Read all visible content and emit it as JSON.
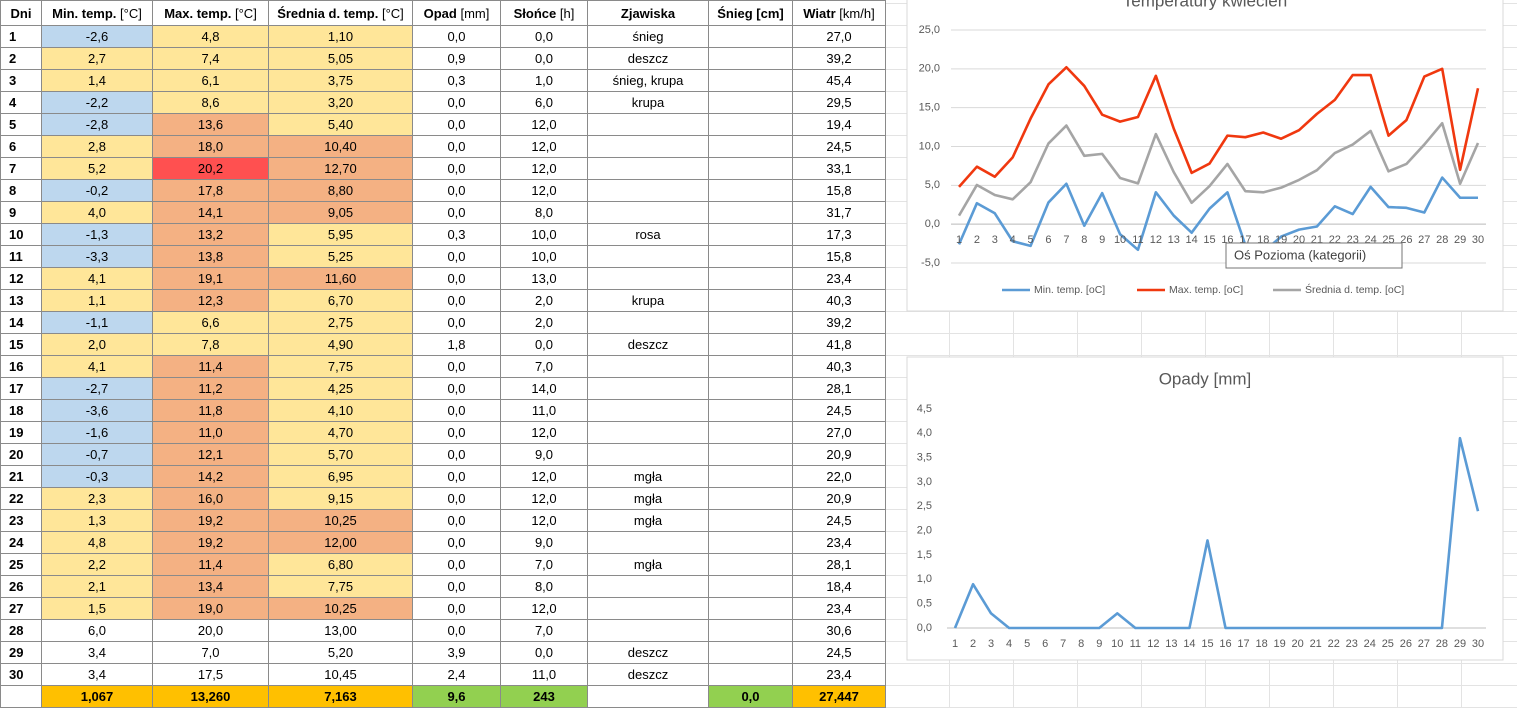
{
  "table": {
    "headers": [
      {
        "name": "Dni"
      },
      {
        "name": "Min. temp.",
        "unit": "[°C]"
      },
      {
        "name": "Max. temp.",
        "unit": "[°C]"
      },
      {
        "name": "Średnia d. temp.",
        "unit": "[°C]"
      },
      {
        "name": "Opad",
        "unit": "[mm]"
      },
      {
        "name": "Słońce",
        "unit": "[h]"
      },
      {
        "name": "Zjawiska"
      },
      {
        "name": "Śnieg [cm]"
      },
      {
        "name": "Wiatr",
        "unit": "[km/h]"
      }
    ],
    "rows": [
      [
        "1",
        "-2,6",
        "4,8",
        "1,10",
        "0,0",
        "0,0",
        "śnieg",
        null,
        "27,0"
      ],
      [
        "2",
        "2,7",
        "7,4",
        "5,05",
        "0,9",
        "0,0",
        "deszcz",
        null,
        "39,2"
      ],
      [
        "3",
        "1,4",
        "6,1",
        "3,75",
        "0,3",
        "1,0",
        "śnieg, krupa",
        null,
        "45,4"
      ],
      [
        "4",
        "-2,2",
        "8,6",
        "3,20",
        "0,0",
        "6,0",
        "krupa",
        null,
        "29,5"
      ],
      [
        "5",
        "-2,8",
        "13,6",
        "5,40",
        "0,0",
        "12,0",
        null,
        null,
        "19,4"
      ],
      [
        "6",
        "2,8",
        "18,0",
        "10,40",
        "0,0",
        "12,0",
        null,
        null,
        "24,5"
      ],
      [
        "7",
        "5,2",
        "20,2",
        "12,70",
        "0,0",
        "12,0",
        null,
        null,
        "33,1"
      ],
      [
        "8",
        "-0,2",
        "17,8",
        "8,80",
        "0,0",
        "12,0",
        null,
        null,
        "15,8"
      ],
      [
        "9",
        "4,0",
        "14,1",
        "9,05",
        "0,0",
        "8,0",
        null,
        null,
        "31,7"
      ],
      [
        "10",
        "-1,3",
        "13,2",
        "5,95",
        "0,3",
        "10,0",
        "rosa",
        null,
        "17,3"
      ],
      [
        "11",
        "-3,3",
        "13,8",
        "5,25",
        "0,0",
        "10,0",
        null,
        null,
        "15,8"
      ],
      [
        "12",
        "4,1",
        "19,1",
        "11,60",
        "0,0",
        "13,0",
        null,
        null,
        "23,4"
      ],
      [
        "13",
        "1,1",
        "12,3",
        "6,70",
        "0,0",
        "2,0",
        "krupa",
        null,
        "40,3"
      ],
      [
        "14",
        "-1,1",
        "6,6",
        "2,75",
        "0,0",
        "2,0",
        null,
        null,
        "39,2"
      ],
      [
        "15",
        "2,0",
        "7,8",
        "4,90",
        "1,8",
        "0,0",
        "deszcz",
        null,
        "41,8"
      ],
      [
        "16",
        "4,1",
        "11,4",
        "7,75",
        "0,0",
        "7,0",
        null,
        null,
        "40,3"
      ],
      [
        "17",
        "-2,7",
        "11,2",
        "4,25",
        "0,0",
        "14,0",
        null,
        null,
        "28,1"
      ],
      [
        "18",
        "-3,6",
        "11,8",
        "4,10",
        "0,0",
        "11,0",
        null,
        null,
        "24,5"
      ],
      [
        "19",
        "-1,6",
        "11,0",
        "4,70",
        "0,0",
        "12,0",
        null,
        null,
        "27,0"
      ],
      [
        "20",
        "-0,7",
        "12,1",
        "5,70",
        "0,0",
        "9,0",
        null,
        null,
        "20,9"
      ],
      [
        "21",
        "-0,3",
        "14,2",
        "6,95",
        "0,0",
        "12,0",
        "mgła",
        null,
        "22,0"
      ],
      [
        "22",
        "2,3",
        "16,0",
        "9,15",
        "0,0",
        "12,0",
        "mgła",
        null,
        "20,9"
      ],
      [
        "23",
        "1,3",
        "19,2",
        "10,25",
        "0,0",
        "12,0",
        "mgła",
        null,
        "24,5"
      ],
      [
        "24",
        "4,8",
        "19,2",
        "12,00",
        "0,0",
        "9,0",
        null,
        null,
        "23,4"
      ],
      [
        "25",
        "2,2",
        "11,4",
        "6,80",
        "0,0",
        "7,0",
        "mgła",
        null,
        "28,1"
      ],
      [
        "26",
        "2,1",
        "13,4",
        "7,75",
        "0,0",
        "8,0",
        null,
        null,
        "18,4"
      ],
      [
        "27",
        "1,5",
        "19,0",
        "10,25",
        "0,0",
        "12,0",
        null,
        null,
        "23,4"
      ],
      [
        "28",
        "6,0",
        "20,0",
        "13,00",
        "0,0",
        "7,0",
        null,
        null,
        "30,6"
      ],
      [
        "29",
        "3,4",
        "7,0",
        "5,20",
        "3,9",
        "0,0",
        "deszcz",
        null,
        "24,5"
      ],
      [
        "30",
        "3,4",
        "17,5",
        "10,45",
        "2,4",
        "11,0",
        "deszcz",
        null,
        "23,4"
      ]
    ],
    "fills": [
      [
        "#BDD7EE",
        "#FFE699",
        "#FFE699"
      ],
      [
        "#FFE699",
        "#FFE699",
        "#FFE699"
      ],
      [
        "#FFE699",
        "#FFE699",
        "#FFE699"
      ],
      [
        "#BDD7EE",
        "#FFE699",
        "#FFE699"
      ],
      [
        "#BDD7EE",
        "#F4B183",
        "#FFE699"
      ],
      [
        "#FFE699",
        "#F4B183",
        "#F4B183"
      ],
      [
        "#FFE699",
        "#FF5050",
        "#F4B183"
      ],
      [
        "#BDD7EE",
        "#F4B183",
        "#F4B183"
      ],
      [
        "#FFE699",
        "#F4B183",
        "#F4B183"
      ],
      [
        "#BDD7EE",
        "#F4B183",
        "#FFE699"
      ],
      [
        "#BDD7EE",
        "#F4B183",
        "#FFE699"
      ],
      [
        "#FFE699",
        "#F4B183",
        "#F4B183"
      ],
      [
        "#FFE699",
        "#F4B183",
        "#FFE699"
      ],
      [
        "#BDD7EE",
        "#FFE699",
        "#FFE699"
      ],
      [
        "#FFE699",
        "#FFE699",
        "#FFE699"
      ],
      [
        "#FFE699",
        "#F4B183",
        "#FFE699"
      ],
      [
        "#BDD7EE",
        "#F4B183",
        "#FFE699"
      ],
      [
        "#BDD7EE",
        "#F4B183",
        "#FFE699"
      ],
      [
        "#BDD7EE",
        "#F4B183",
        "#FFE699"
      ],
      [
        "#BDD7EE",
        "#F4B183",
        "#FFE699"
      ],
      [
        "#BDD7EE",
        "#F4B183",
        "#FFE699"
      ],
      [
        "#FFE699",
        "#F4B183",
        "#FFE699"
      ],
      [
        "#FFE699",
        "#F4B183",
        "#F4B183"
      ],
      [
        "#FFE699",
        "#F4B183",
        "#F4B183"
      ],
      [
        "#FFE699",
        "#F4B183",
        "#FFE699"
      ],
      [
        "#FFE699",
        "#F4B183",
        "#FFE699"
      ],
      [
        "#FFE699",
        "#F4B183",
        "#F4B183"
      ],
      [
        null,
        null,
        null
      ],
      [
        null,
        null,
        null
      ],
      [
        null,
        null,
        null
      ]
    ],
    "totals": [
      null,
      "1,067",
      "13,260",
      "7,163",
      "9,6",
      "243",
      null,
      "0,0",
      "27,447"
    ],
    "totals_fills": [
      null,
      "#FFC000",
      "#FFC000",
      "#FFC000",
      "#92D050",
      "#92D050",
      null,
      "#92D050",
      "#FFC000"
    ]
  },
  "chart_data": [
    {
      "type": "line",
      "title": "Temperatury kwiecień",
      "tooltip": "Oś Pozioma (kategorii)",
      "grid": true,
      "legend": "bottom",
      "categories": [
        "1",
        "2",
        "3",
        "4",
        "5",
        "6",
        "7",
        "8",
        "9",
        "10",
        "11",
        "12",
        "13",
        "14",
        "15",
        "16",
        "17",
        "18",
        "19",
        "20",
        "21",
        "22",
        "23",
        "24",
        "25",
        "26",
        "27",
        "28",
        "29",
        "30"
      ],
      "ylim": [
        -5,
        25
      ],
      "yticks": [
        {
          "value": -5,
          "label": "-5,0"
        },
        {
          "value": 0,
          "label": "0,0"
        },
        {
          "value": 5,
          "label": "5,0"
        },
        {
          "value": 10,
          "label": "10,0"
        },
        {
          "value": 15,
          "label": "15,0"
        },
        {
          "value": 20,
          "label": "20,0"
        },
        {
          "value": 25,
          "label": "25,0"
        }
      ],
      "series": [
        {
          "name": "Min. temp. [oC]",
          "color": "#5B9BD5",
          "values": [
            -2.6,
            2.7,
            1.4,
            -2.2,
            -2.8,
            2.8,
            5.2,
            -0.2,
            4.0,
            -1.3,
            -3.3,
            4.1,
            1.1,
            -1.1,
            2.0,
            4.1,
            -2.7,
            -3.6,
            -1.6,
            -0.7,
            -0.3,
            2.3,
            1.3,
            4.8,
            2.2,
            2.1,
            1.5,
            6.0,
            3.4,
            3.4
          ]
        },
        {
          "name": "Max. temp. [oC]",
          "color": "#F0380F",
          "values": [
            4.8,
            7.4,
            6.1,
            8.6,
            13.6,
            18.0,
            20.2,
            17.8,
            14.1,
            13.2,
            13.8,
            19.1,
            12.3,
            6.6,
            7.8,
            11.4,
            11.2,
            11.8,
            11.0,
            12.1,
            14.2,
            16.0,
            19.2,
            19.2,
            11.4,
            13.4,
            19.0,
            20.0,
            7.0,
            17.5
          ]
        },
        {
          "name": "Średnia d. temp. [oC]",
          "color": "#A5A5A5",
          "values": [
            1.1,
            5.05,
            3.75,
            3.2,
            5.4,
            10.4,
            12.7,
            8.8,
            9.05,
            5.95,
            5.25,
            11.6,
            6.7,
            2.75,
            4.9,
            7.75,
            4.25,
            4.1,
            4.7,
            5.7,
            6.95,
            9.15,
            10.25,
            12.0,
            6.8,
            7.75,
            10.25,
            13.0,
            5.2,
            10.45
          ]
        }
      ]
    },
    {
      "type": "line",
      "title": "Opady [mm]",
      "grid": false,
      "categories": [
        "1",
        "2",
        "3",
        "4",
        "5",
        "6",
        "7",
        "8",
        "9",
        "10",
        "11",
        "12",
        "13",
        "14",
        "15",
        "16",
        "17",
        "18",
        "19",
        "20",
        "21",
        "22",
        "23",
        "24",
        "25",
        "26",
        "27",
        "28",
        "29",
        "30"
      ],
      "ylim": [
        0,
        4.5
      ],
      "yticks": [
        {
          "value": 0,
          "label": "0,0"
        },
        {
          "value": 0.5,
          "label": "0,5"
        },
        {
          "value": 1,
          "label": "1,0"
        },
        {
          "value": 1.5,
          "label": "1,5"
        },
        {
          "value": 2,
          "label": "2,0"
        },
        {
          "value": 2.5,
          "label": "2,5"
        },
        {
          "value": 3,
          "label": "3,0"
        },
        {
          "value": 3.5,
          "label": "3,5"
        },
        {
          "value": 4,
          "label": "4,0"
        },
        {
          "value": 4.5,
          "label": "4,5"
        }
      ],
      "series": [
        {
          "color": "#5B9BD5",
          "values": [
            0,
            0.9,
            0.3,
            0,
            0,
            0,
            0,
            0,
            0,
            0.3,
            0,
            0,
            0,
            0,
            1.8,
            0,
            0,
            0,
            0,
            0,
            0,
            0,
            0,
            0,
            0,
            0,
            0,
            0,
            3.9,
            2.4
          ]
        }
      ]
    }
  ]
}
